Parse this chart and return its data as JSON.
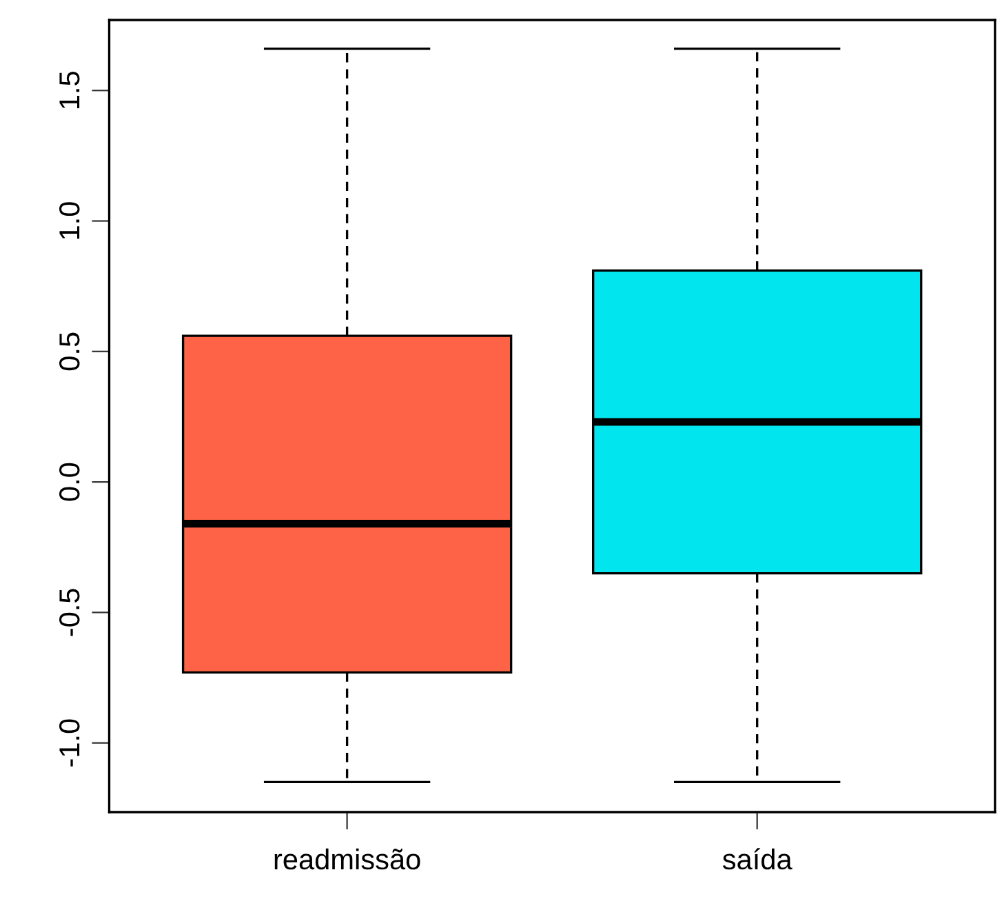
{
  "chart_data": {
    "type": "box",
    "categories": [
      "readmissão",
      "saída"
    ],
    "boxes": [
      {
        "low": -1.15,
        "q1": -0.73,
        "median": -0.16,
        "q3": 0.56,
        "high": 1.66
      },
      {
        "low": -1.15,
        "q1": -0.35,
        "median": 0.23,
        "q3": 0.81,
        "high": 1.66
      }
    ],
    "colors": [
      "#ff6347",
      "#00e5ee"
    ],
    "ylim": [
      -1.265,
      1.77
    ],
    "yticks": [
      {
        "value": -1,
        "label": "-1.0"
      },
      -0.5,
      {
        "value": 0,
        "label": "0.0"
      },
      0.5,
      {
        "value": 1,
        "label": "1.0"
      },
      1.5
    ],
    "grid": false,
    "line_style": "dashed"
  }
}
